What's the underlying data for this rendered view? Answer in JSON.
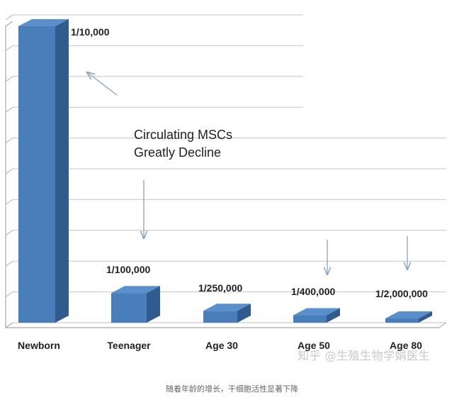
{
  "chart_data": {
    "type": "bar",
    "categories": [
      "Newborn",
      "Teenager",
      "Age 30",
      "Age 50",
      "Age 80"
    ],
    "values": [
      0.0001,
      1e-05,
      4e-06,
      2.5e-06,
      5e-07
    ],
    "data_labels": [
      "1/10,000",
      "1/100,000",
      "1/250,000",
      "1/400,000",
      "1/2,000,000"
    ],
    "ylim": [
      0,
      0.0001
    ],
    "grid": true,
    "annotation": {
      "line1": "Circulating MSCs",
      "line2": "Greatly Decline"
    },
    "bar_color": "#4a7ebb"
  },
  "watermark": "知乎 @生殖生物学娟医生",
  "caption": "随着年龄的增长，干细胞活性显著下降"
}
